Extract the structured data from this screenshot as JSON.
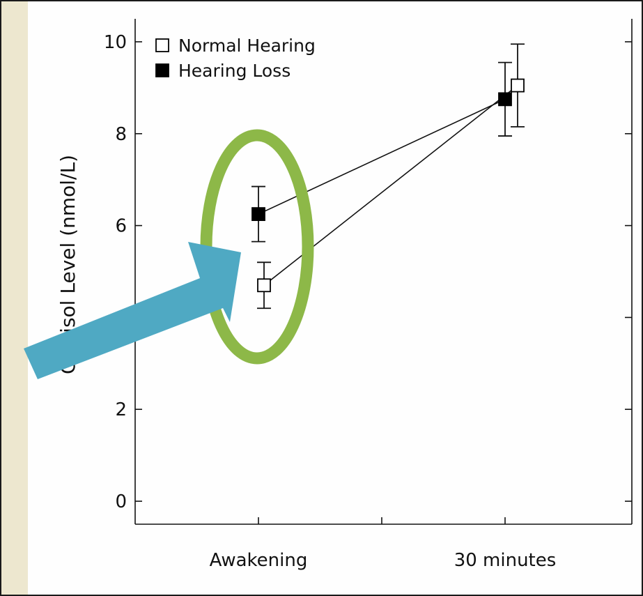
{
  "chart_data": {
    "type": "scatter",
    "title": "",
    "xlabel": "",
    "ylabel": "Cortisol Level (nmol/L)",
    "categories": [
      "Awakening",
      "30 minutes"
    ],
    "ylim": [
      -0.5,
      10.5
    ],
    "yticks": [
      0,
      2,
      4,
      6,
      8,
      10
    ],
    "ytick_labels": [
      "0",
      "2",
      "",
      "6",
      "8",
      "10"
    ],
    "legend_position": "top-left",
    "grid": false,
    "series": [
      {
        "name": "Normal Hearing",
        "marker": "open-square",
        "x": [
          "Awakening",
          "30 minutes"
        ],
        "values": [
          4.7,
          9.05
        ],
        "error_low": [
          4.2,
          8.15
        ],
        "error_high": [
          5.2,
          9.95
        ]
      },
      {
        "name": "Hearing Loss",
        "marker": "filled-square",
        "x": [
          "Awakening",
          "30 minutes"
        ],
        "values": [
          6.25,
          8.75
        ],
        "error_low": [
          5.65,
          7.95
        ],
        "error_high": [
          6.85,
          9.55
        ]
      }
    ],
    "annotations": [
      {
        "type": "ellipse",
        "color": "#8db848",
        "target": "Awakening"
      },
      {
        "type": "arrow",
        "color": "#4fa9c3",
        "target": "Awakening"
      }
    ]
  }
}
